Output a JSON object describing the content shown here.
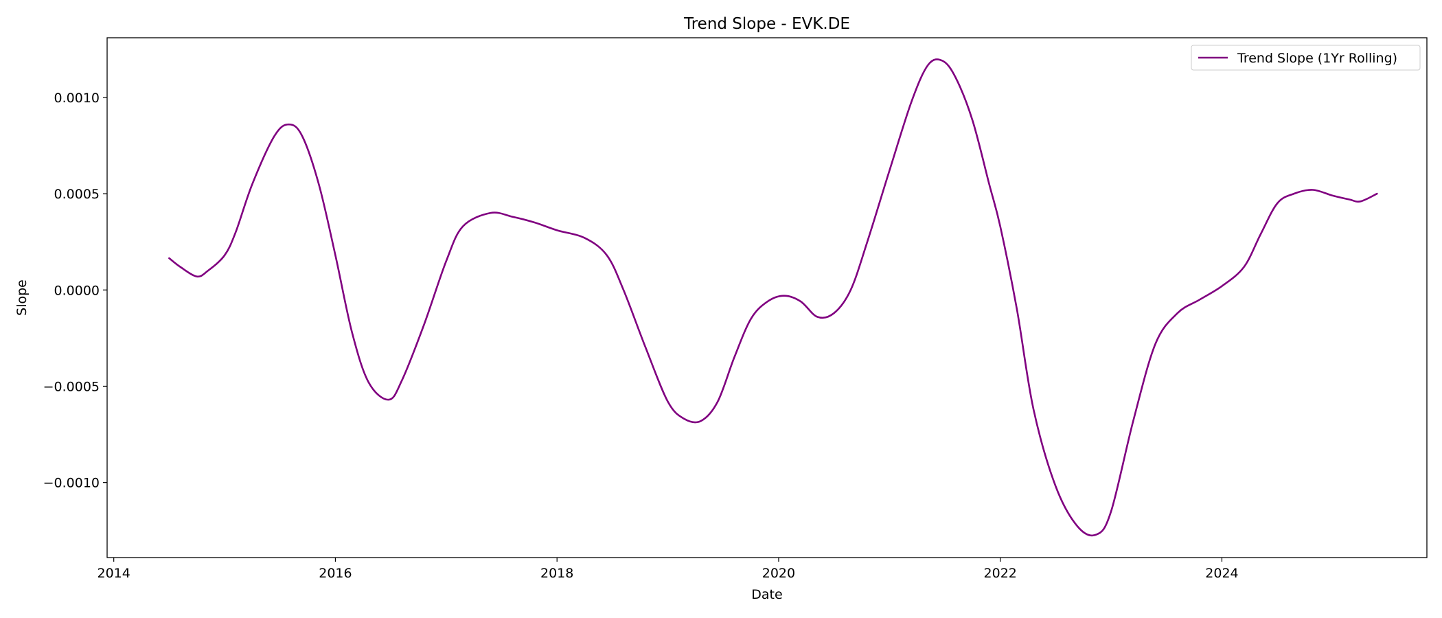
{
  "chart_data": {
    "type": "line",
    "title": "Trend Slope - EVK.DE",
    "xlabel": "Date",
    "ylabel": "Slope",
    "xlim": [
      2013.94,
      2025.85
    ],
    "ylim": [
      -0.00139,
      0.00131
    ],
    "x_ticks": [
      2014,
      2016,
      2018,
      2020,
      2022,
      2024
    ],
    "x_tick_labels": [
      "2014",
      "2016",
      "2018",
      "2020",
      "2022",
      "2024"
    ],
    "y_ticks": [
      -0.001,
      -0.0005,
      0.0,
      0.0005,
      0.001
    ],
    "y_tick_labels": [
      "−0.0010",
      "−0.0005",
      "0.0000",
      "0.0005",
      "0.0010"
    ],
    "grid": false,
    "legend": {
      "position": "top-right",
      "entries": [
        "Trend Slope (1Yr Rolling)"
      ]
    },
    "series": [
      {
        "name": "Trend Slope (1Yr Rolling)",
        "color": "#800080",
        "x": [
          2014.5,
          2014.6,
          2014.75,
          2014.85,
          2015.0,
          2015.1,
          2015.25,
          2015.45,
          2015.58,
          2015.7,
          2015.85,
          2016.0,
          2016.15,
          2016.3,
          2016.48,
          2016.6,
          2016.8,
          2017.0,
          2017.15,
          2017.4,
          2017.6,
          2017.8,
          2018.0,
          2018.25,
          2018.45,
          2018.6,
          2018.8,
          2019.0,
          2019.15,
          2019.3,
          2019.45,
          2019.6,
          2019.75,
          2019.9,
          2020.05,
          2020.2,
          2020.35,
          2020.5,
          2020.65,
          2020.8,
          2021.0,
          2021.2,
          2021.35,
          2021.48,
          2021.6,
          2021.75,
          2021.9,
          2022.0,
          2022.15,
          2022.3,
          2022.5,
          2022.7,
          2022.87,
          2023.0,
          2023.2,
          2023.4,
          2023.6,
          2023.8,
          2024.0,
          2024.2,
          2024.35,
          2024.5,
          2024.65,
          2024.82,
          2025.0,
          2025.15,
          2025.25,
          2025.4
        ],
        "y": [
          0.000165,
          0.00012,
          7e-05,
          0.0001,
          0.00018,
          0.0003,
          0.00055,
          0.0008,
          0.00086,
          0.0008,
          0.00055,
          0.00018,
          -0.00022,
          -0.00048,
          -0.00057,
          -0.00047,
          -0.00018,
          0.00015,
          0.00033,
          0.0004,
          0.00038,
          0.00035,
          0.00031,
          0.00027,
          0.00018,
          0.0,
          -0.0003,
          -0.00058,
          -0.00067,
          -0.00068,
          -0.00058,
          -0.00035,
          -0.00015,
          -6e-05,
          -3e-05,
          -6e-05,
          -0.00014,
          -0.00012,
          0.0,
          0.00025,
          0.00062,
          0.00098,
          0.00117,
          0.00119,
          0.0011,
          0.00088,
          0.00055,
          0.00033,
          -0.0001,
          -0.00062,
          -0.00102,
          -0.00123,
          -0.00127,
          -0.00115,
          -0.00068,
          -0.00028,
          -0.00012,
          -5e-05,
          2e-05,
          0.00012,
          0.00029,
          0.00045,
          0.0005,
          0.00052,
          0.00049,
          0.00047,
          0.00046,
          0.0005
        ]
      }
    ]
  }
}
